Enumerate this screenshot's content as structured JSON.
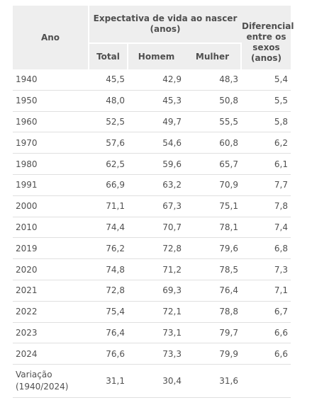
{
  "header": {
    "ano": "Ano",
    "group": "Expectativa de vida ao nascer (anos)",
    "total": "Total",
    "homem": "Homem",
    "mulher": "Mulher",
    "diferencial": "Diferencial entre os sexos (anos)"
  },
  "rows": [
    {
      "ano": "1940",
      "total": "45,5",
      "homem": "42,9",
      "mulher": "48,3",
      "dif": "5,4"
    },
    {
      "ano": "1950",
      "total": "48,0",
      "homem": "45,3",
      "mulher": "50,8",
      "dif": "5,5"
    },
    {
      "ano": "1960",
      "total": "52,5",
      "homem": "49,7",
      "mulher": "55,5",
      "dif": "5,8"
    },
    {
      "ano": "1970",
      "total": "57,6",
      "homem": "54,6",
      "mulher": "60,8",
      "dif": "6,2"
    },
    {
      "ano": "1980",
      "total": "62,5",
      "homem": "59,6",
      "mulher": "65,7",
      "dif": "6,1"
    },
    {
      "ano": "1991",
      "total": "66,9",
      "homem": "63,2",
      "mulher": "70,9",
      "dif": "7,7"
    },
    {
      "ano": "2000",
      "total": "71,1",
      "homem": "67,3",
      "mulher": "75,1",
      "dif": "7,8"
    },
    {
      "ano": "2010",
      "total": "74,4",
      "homem": "70,7",
      "mulher": "78,1",
      "dif": "7,4"
    },
    {
      "ano": "2019",
      "total": "76,2",
      "homem": "72,8",
      "mulher": "79,6",
      "dif": "6,8"
    },
    {
      "ano": "2020",
      "total": "74,8",
      "homem": "71,2",
      "mulher": "78,5",
      "dif": "7,3"
    },
    {
      "ano": "2021",
      "total": "72,8",
      "homem": "69,3",
      "mulher": "76,4",
      "dif": "7,1"
    },
    {
      "ano": "2022",
      "total": "75,4",
      "homem": "72,1",
      "mulher": "78,8",
      "dif": "6,7"
    },
    {
      "ano": "2023",
      "total": "76,4",
      "homem": "73,1",
      "mulher": "79,7",
      "dif": "6,6"
    },
    {
      "ano": "2024",
      "total": "76,6",
      "homem": "73,3",
      "mulher": "79,9",
      "dif": "6,6"
    },
    {
      "ano": "Variação (1940/2024)",
      "total": "31,1",
      "homem": "30,4",
      "mulher": "31,6",
      "dif": ""
    }
  ]
}
